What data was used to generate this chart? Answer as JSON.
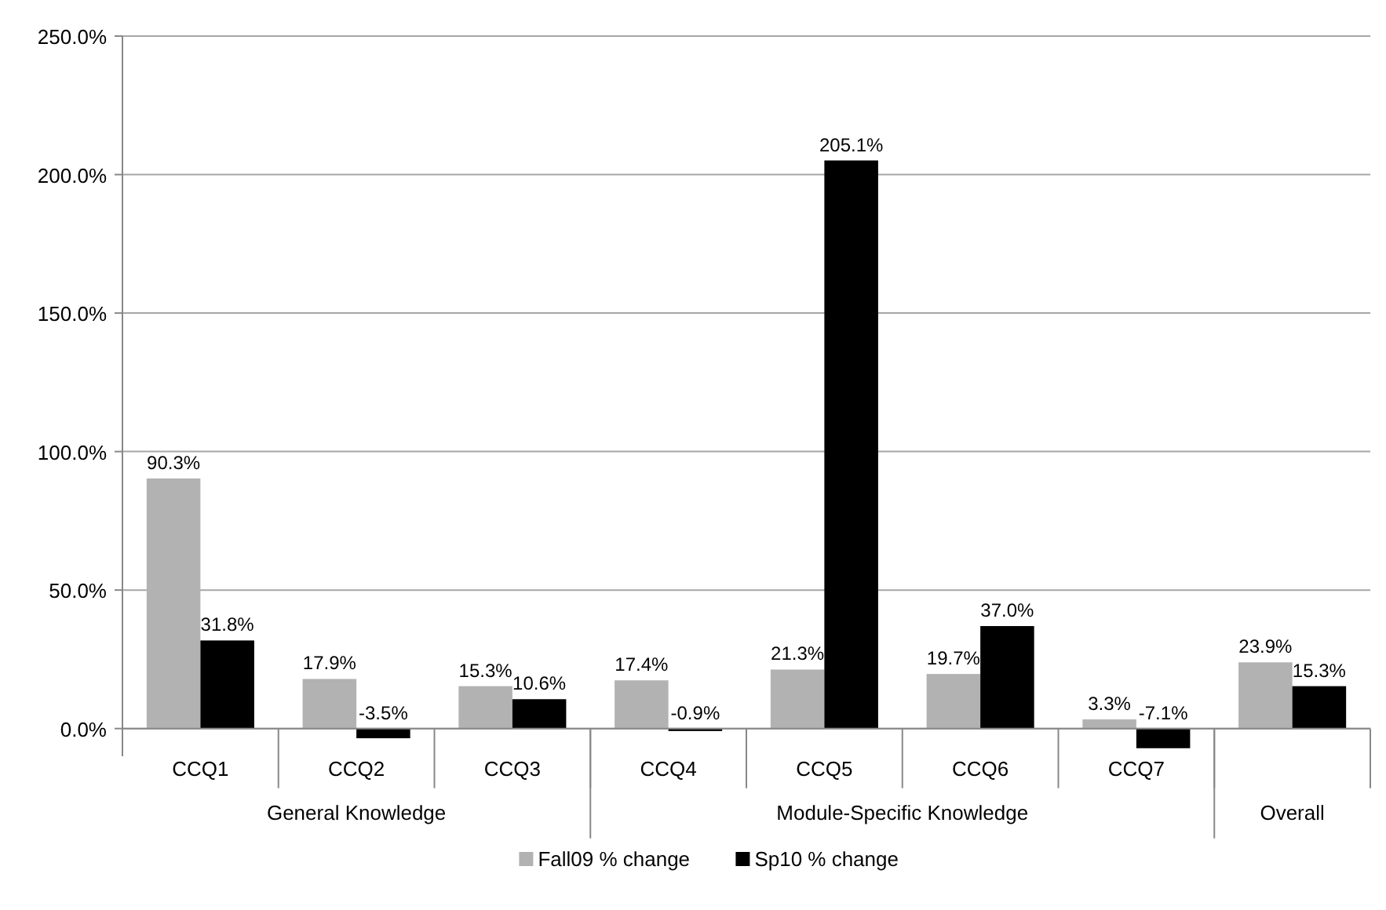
{
  "chart_data": {
    "type": "bar",
    "categories": [
      "CCQ1",
      "CCQ2",
      "CCQ3",
      "CCQ4",
      "CCQ5",
      "CCQ6",
      "CCQ7",
      null
    ],
    "series": [
      {
        "name": "Fall09 % change",
        "color": "#b2b2b2",
        "values": [
          90.3,
          17.9,
          15.3,
          17.4,
          21.3,
          19.7,
          3.3,
          23.9
        ],
        "value_labels": [
          "90.3%",
          "17.9%",
          "15.3%",
          "17.4%",
          "21.3%",
          "19.7%",
          "3.3%",
          "23.9%"
        ]
      },
      {
        "name": "Sp10 % change",
        "color": "#000000",
        "values": [
          31.8,
          -3.5,
          10.6,
          -0.9,
          205.1,
          37.0,
          -7.1,
          15.3
        ],
        "value_labels": [
          "31.8%",
          "-3.5%",
          "10.6%",
          "-0.9%",
          "205.1%",
          "37.0%",
          "-7.1%",
          "15.3%"
        ]
      }
    ],
    "ylim": [
      -10,
      250
    ],
    "yticks": [
      {
        "value": 0,
        "label": "0.0%"
      },
      {
        "value": 50,
        "label": "50.0%"
      },
      {
        "value": 100,
        "label": "100.0%"
      },
      {
        "value": 150,
        "label": "150.0%"
      },
      {
        "value": 200,
        "label": "200.0%"
      },
      {
        "value": 250,
        "label": "250.0%"
      }
    ],
    "grid": "y",
    "legend": "bottom",
    "annotations": [
      "General Knowledge",
      "Module-Specific Knowledge",
      "Overall"
    ]
  }
}
